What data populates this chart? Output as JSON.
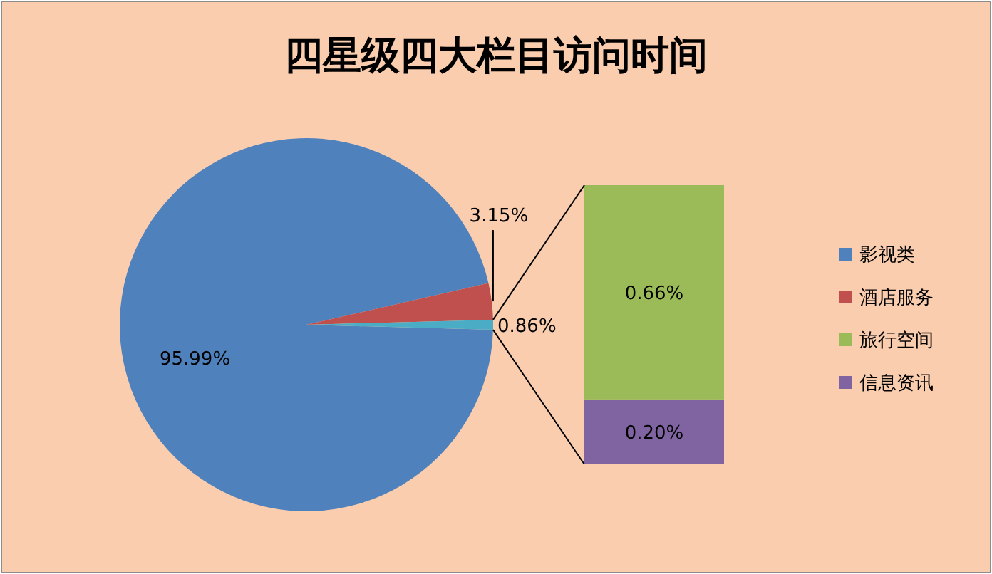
{
  "chart_data": [
    {
      "type": "pie",
      "title": "四星级四大栏目访问时间",
      "categories": [
        "影视类",
        "酒店服务",
        null
      ],
      "values": [
        95.99,
        3.15,
        0.86
      ],
      "value_labels": [
        "95.99%",
        "3.15%",
        "0.86%"
      ],
      "colors": [
        "#4f81bd",
        "#c0504d",
        "#4bacc6"
      ],
      "legend": "right"
    },
    {
      "type": "bar",
      "stacked": true,
      "categories": [
        null
      ],
      "series": [
        {
          "name": "信息资讯",
          "color": "#8064a2",
          "values": [
            0.2
          ],
          "value_labels": [
            "0.20%"
          ]
        },
        {
          "name": "旅行空间",
          "color": "#9bbb59",
          "values": [
            0.66
          ],
          "value_labels": [
            "0.66%"
          ]
        }
      ],
      "legend": "right"
    }
  ]
}
